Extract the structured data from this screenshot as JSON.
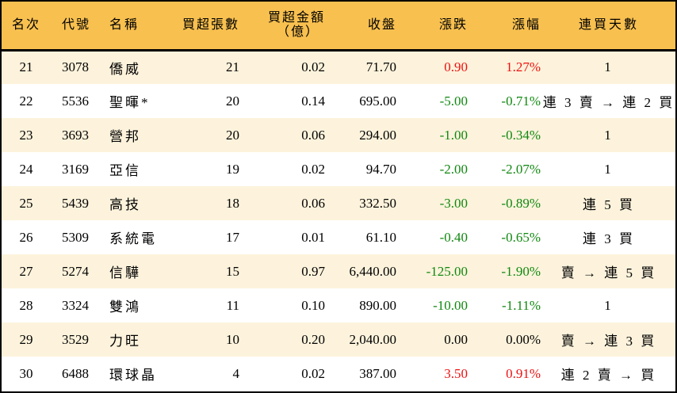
{
  "colors": {
    "header_bg": "#f8c04f",
    "row_odd_bg": "#fdf3dc",
    "row_even_bg": "#ffffff",
    "up": "#ee1111",
    "down": "#118811"
  },
  "table": {
    "headers": {
      "rank": "名次",
      "code": "代號",
      "name": "名稱",
      "lots": "買超張數",
      "amount_line1": "買超金額",
      "amount_line2": "（億）",
      "close": "收盤",
      "change": "漲跌",
      "pct": "漲幅",
      "streak": "連買天數"
    },
    "rows": [
      {
        "rank": "21",
        "code": "3078",
        "name": "僑威",
        "lots": "21",
        "amount": "0.02",
        "close": "71.70",
        "change": "0.90",
        "pct": "1.27%",
        "dir": "up",
        "streak": "1"
      },
      {
        "rank": "22",
        "code": "5536",
        "name": "聖暉*",
        "lots": "20",
        "amount": "0.14",
        "close": "695.00",
        "change": "-5.00",
        "pct": "-0.71%",
        "dir": "down",
        "streak": "連 3 賣 → 連 2 買"
      },
      {
        "rank": "23",
        "code": "3693",
        "name": "營邦",
        "lots": "20",
        "amount": "0.06",
        "close": "294.00",
        "change": "-1.00",
        "pct": "-0.34%",
        "dir": "down",
        "streak": "1"
      },
      {
        "rank": "24",
        "code": "3169",
        "name": "亞信",
        "lots": "19",
        "amount": "0.02",
        "close": "94.70",
        "change": "-2.00",
        "pct": "-2.07%",
        "dir": "down",
        "streak": "1"
      },
      {
        "rank": "25",
        "code": "5439",
        "name": "高技",
        "lots": "18",
        "amount": "0.06",
        "close": "332.50",
        "change": "-3.00",
        "pct": "-0.89%",
        "dir": "down",
        "streak": "連 5 買"
      },
      {
        "rank": "26",
        "code": "5309",
        "name": "系統電",
        "lots": "17",
        "amount": "0.01",
        "close": "61.10",
        "change": "-0.40",
        "pct": "-0.65%",
        "dir": "down",
        "streak": "連 3 買"
      },
      {
        "rank": "27",
        "code": "5274",
        "name": "信驊",
        "lots": "15",
        "amount": "0.97",
        "close": "6,440.00",
        "change": "-125.00",
        "pct": "-1.90%",
        "dir": "down",
        "streak": "賣 → 連 5 買"
      },
      {
        "rank": "28",
        "code": "3324",
        "name": "雙鴻",
        "lots": "11",
        "amount": "0.10",
        "close": "890.00",
        "change": "-10.00",
        "pct": "-1.11%",
        "dir": "down",
        "streak": "1"
      },
      {
        "rank": "29",
        "code": "3529",
        "name": "力旺",
        "lots": "10",
        "amount": "0.20",
        "close": "2,040.00",
        "change": "0.00",
        "pct": "0.00%",
        "dir": "flat",
        "streak": "賣 → 連 3 買"
      },
      {
        "rank": "30",
        "code": "6488",
        "name": "環球晶",
        "lots": "4",
        "amount": "0.02",
        "close": "387.00",
        "change": "3.50",
        "pct": "0.91%",
        "dir": "up",
        "streak": "連 2 賣 → 買"
      }
    ]
  }
}
